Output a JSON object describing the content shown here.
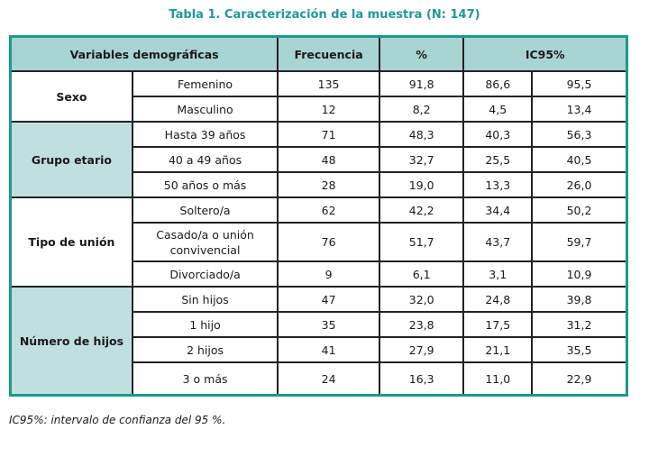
{
  "title": "Tabla 1. Caracterización de la muestra (N: 147)",
  "headers": [
    "Variables demográficas",
    "Frecuencia",
    "%",
    "IC95%"
  ],
  "groups": [
    {
      "label": "Sexo",
      "rows": [
        [
          "Femenino",
          "135",
          "91,8",
          "86,6",
          "95,5"
        ],
        [
          "Masculino",
          "12",
          "8,2",
          "4,5",
          "13,4"
        ]
      ]
    },
    {
      "label": "Grupo etario",
      "rows": [
        [
          "Hasta 39 años",
          "71",
          "48,3",
          "40,3",
          "56,3"
        ],
        [
          "40 a 49 años",
          "48",
          "32,7",
          "25,5",
          "40,5"
        ],
        [
          "50 años o más",
          "28",
          "19,0",
          "13,3",
          "26,0"
        ]
      ]
    },
    {
      "label": "Tipo de unión",
      "rows": [
        [
          "Soltero/a",
          "62",
          "42,2",
          "34,4",
          "50,2"
        ],
        [
          "Casado/a o unión convivencial",
          "76",
          "51,7",
          "43,7",
          "59,7"
        ],
        [
          "Divorciado/a",
          "9",
          "6,1",
          "3,1",
          "10,9"
        ]
      ]
    },
    {
      "label": "Número de hijos",
      "rows": [
        [
          "Sin hijos",
          "47",
          "32,0",
          "24,8",
          "39,8"
        ],
        [
          "1 hijo",
          "35",
          "23,8",
          "17,5",
          "31,2"
        ],
        [
          "2 hijos",
          "41",
          "27,9",
          "21,1",
          "35,5"
        ],
        [
          "3 o más",
          "24",
          "16,3",
          "11,0",
          "22,9"
        ]
      ]
    }
  ],
  "footnote": "IC95%: intervalo de confianza del 95 %."
}
